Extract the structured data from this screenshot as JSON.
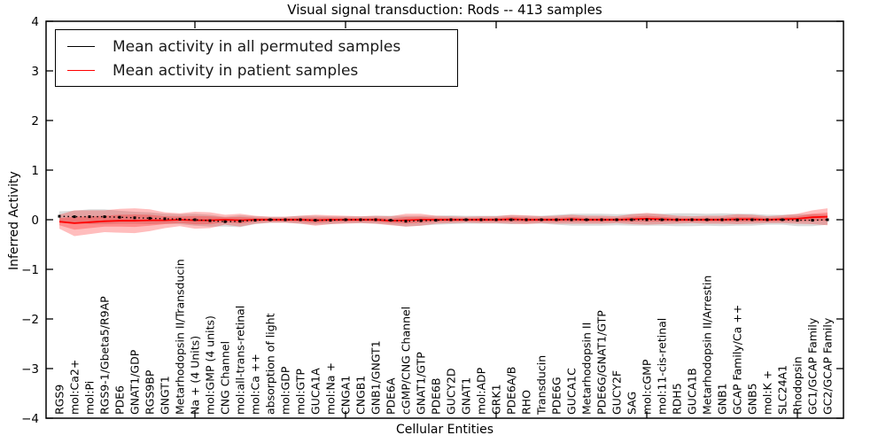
{
  "title": "Visual signal transduction: Rods -- 413 samples",
  "legend": {
    "items": [
      {
        "label": "Mean activity in all permuted samples",
        "color": "#000000"
      },
      {
        "label": "Mean activity in patient samples",
        "color": "#ff0000"
      }
    ]
  },
  "axes": {
    "xlabel": "Cellular Entities",
    "ylabel": "Inferred Activity",
    "y_ticks": [
      4,
      3,
      2,
      1,
      0,
      -1,
      -2,
      -3,
      -4
    ],
    "ylim": [
      -4,
      4
    ]
  },
  "chart_data": {
    "type": "line",
    "title": "Visual signal transduction: Rods -- 413 samples",
    "xlabel": "Cellular Entities",
    "ylabel": "Inferred Activity",
    "ylim": [
      -4,
      4
    ],
    "grid": false,
    "legend_position": "upper left",
    "x_tick_values": [
      10,
      20,
      30,
      40,
      50
    ],
    "categories": [
      "RGS9",
      "mol:Ca2+",
      "mol:Pi",
      "RGS9-1/Gbeta5/R9AP",
      "PDE6",
      "GNAT1/GDP",
      "RGS9BP",
      "GNGT1",
      "Metarhodopsin II/Transducin",
      "Na + (4 Units)",
      "mol:GMP (4 units)",
      "CNG Channel",
      "mol:all-trans-retinal",
      "mol:Ca ++",
      "absorption of light",
      "mol:GDP",
      "mol:GTP",
      "GUCA1A",
      "mol:Na +",
      "CNGA1",
      "CNGB1",
      "GNB1/GNGT1",
      "PDE6A",
      "cGMP/CNG Channel",
      "GNAT1/GTP",
      "PDE6B",
      "GUCY2D",
      "GNAT1",
      "mol:ADP",
      "GRK1",
      "PDE6A/B",
      "RHO",
      "Transducin",
      "PDE6G",
      "GUCA1C",
      "Metarhodopsin II",
      "PDE6G/GNAT1/GTP",
      "GUCY2F",
      "SAG",
      "mol:cGMP",
      "mol:11-cis-retinal",
      "RDH5",
      "GUCA1B",
      "Metarhodopsin II/Arrestin",
      "GNB1",
      "GCAP Family/Ca ++",
      "GNB5",
      "mol:K +",
      "SLC24A1",
      "Rhodopsin",
      "GC1/GCAP Family",
      "GC2/GCAP Family"
    ],
    "series": [
      {
        "name": "Mean activity in all permuted samples",
        "color": "#000000",
        "style": "dotted-with-square-markers",
        "values": [
          0.07,
          0.06,
          0.06,
          0.06,
          0.05,
          0.04,
          0.03,
          0.02,
          0.01,
          0,
          -0.02,
          -0.04,
          -0.03,
          -0.01,
          0,
          0,
          0,
          -0.01,
          -0.01,
          0,
          0,
          0,
          -0.01,
          -0.03,
          -0.02,
          -0.01,
          0,
          0,
          0,
          0,
          0,
          0,
          0,
          0,
          0,
          0,
          0,
          0,
          0,
          0,
          0,
          0,
          0,
          0,
          0,
          0,
          0,
          0,
          0,
          -0.01,
          -0.01,
          0
        ]
      },
      {
        "name": "Mean activity in patient samples",
        "color": "#ff0000",
        "style": "solid",
        "values": [
          -0.04,
          -0.07,
          -0.05,
          -0.03,
          -0.02,
          -0.02,
          -0.01,
          -0.01,
          0,
          -0.01,
          -0.01,
          0,
          -0.01,
          0,
          0,
          0,
          0,
          -0.01,
          0,
          0,
          0,
          0,
          -0.02,
          -0.01,
          0,
          0,
          0,
          0,
          0,
          0,
          0.01,
          0,
          0,
          0,
          0.01,
          0,
          0,
          0,
          0.01,
          0.02,
          0.01,
          0,
          0,
          0,
          0,
          0.01,
          0.01,
          0,
          0.01,
          0.02,
          0.05,
          0.06
        ]
      }
    ],
    "bands": [
      {
        "name": "permuted-samples-spread",
        "center_series": 0,
        "color": "#000000",
        "opacity": 0.14,
        "halfwidths": [
          0.1,
          0.12,
          0.15,
          0.15,
          0.13,
          0.12,
          0.12,
          0.1,
          0.1,
          0.12,
          0.12,
          0.1,
          0.12,
          0.08,
          0.06,
          0.06,
          0.08,
          0.09,
          0.08,
          0.07,
          0.07,
          0.08,
          0.09,
          0.11,
          0.1,
          0.09,
          0.09,
          0.08,
          0.08,
          0.08,
          0.09,
          0.08,
          0.08,
          0.1,
          0.12,
          0.12,
          0.12,
          0.11,
          0.12,
          0.12,
          0.12,
          0.13,
          0.13,
          0.12,
          0.13,
          0.12,
          0.12,
          0.1,
          0.1,
          0.12,
          0.12,
          0.1
        ]
      },
      {
        "name": "patient-samples-spread",
        "center_series": 1,
        "color": "#ff0000",
        "opacity": 0.26,
        "halfwidths": [
          0.14,
          0.26,
          0.24,
          0.22,
          0.24,
          0.25,
          0.22,
          0.16,
          0.13,
          0.17,
          0.16,
          0.1,
          0.13,
          0.08,
          0.06,
          0.06,
          0.08,
          0.11,
          0.09,
          0.08,
          0.07,
          0.08,
          0.09,
          0.13,
          0.12,
          0.08,
          0.07,
          0.06,
          0.07,
          0.07,
          0.09,
          0.09,
          0.07,
          0.08,
          0.09,
          0.08,
          0.08,
          0.07,
          0.1,
          0.12,
          0.1,
          0.08,
          0.07,
          0.08,
          0.08,
          0.1,
          0.09,
          0.07,
          0.08,
          0.1,
          0.14,
          0.17
        ]
      }
    ]
  }
}
